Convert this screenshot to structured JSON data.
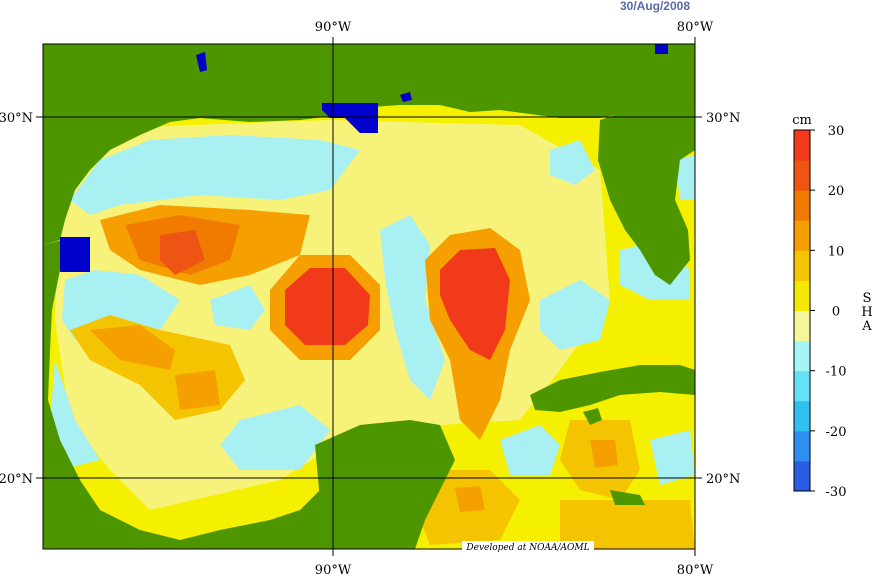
{
  "date": "30/Aug/2008",
  "credit": "Developed at NOAA/AOML",
  "top_lon_labels": [
    "90°W",
    "80°W"
  ],
  "bottom_lon_labels": [
    "90°W",
    "80°W"
  ],
  "lat_labels": [
    "30°N",
    "20°N"
  ],
  "colorbar": {
    "unit": "cm",
    "title_letters": [
      "S",
      "H",
      "A"
    ],
    "ticks": [
      "30",
      "20",
      "10",
      "0",
      "-10",
      "-20",
      "-30"
    ],
    "min": -30,
    "max": 30,
    "colors": [
      "#2a5ce6",
      "#2f8ff0",
      "#30c0f0",
      "#66e0f5",
      "#a6f5f5",
      "#f5f59a",
      "#f5e800",
      "#f5c400",
      "#f5a000",
      "#f07b00",
      "#ee5414",
      "#f03a1a"
    ]
  },
  "map_colors": {
    "land": "#4e9600",
    "lake": "#0000cc",
    "background_sea": "#f5f000"
  }
}
